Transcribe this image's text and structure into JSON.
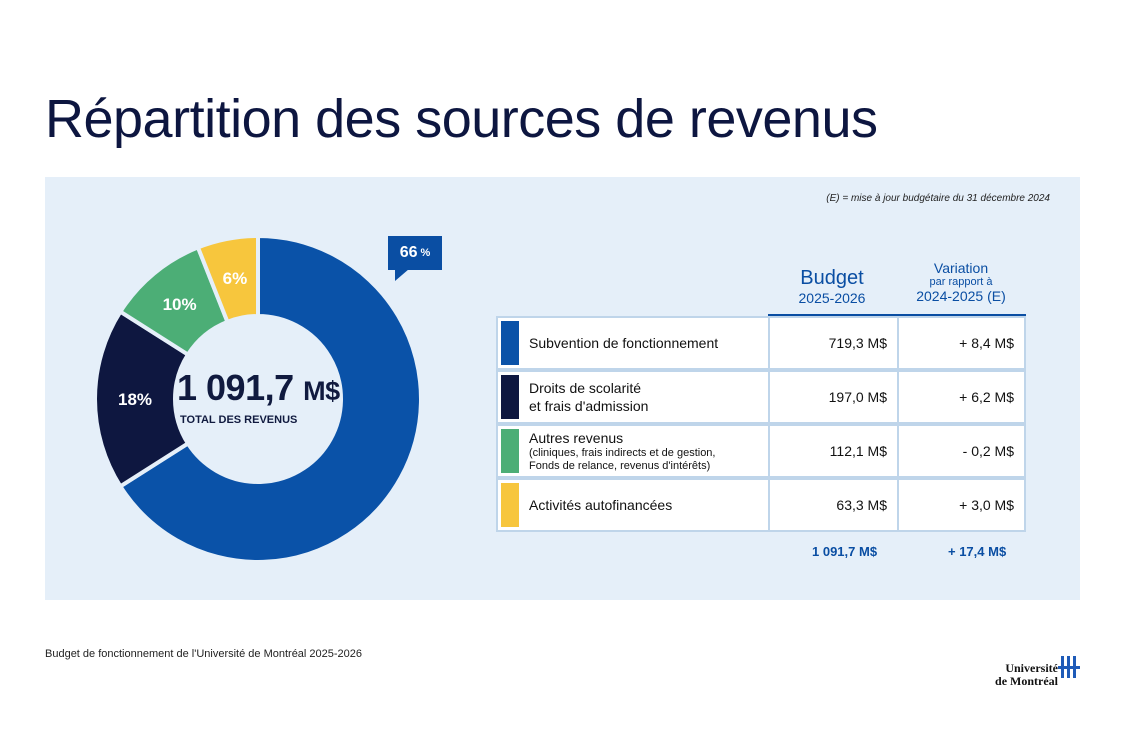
{
  "title": "Répartition des sources de revenus",
  "note": "(E) = mise à jour budgétaire du 31 décembre 2024",
  "colors": {
    "blue": "#0a52a8",
    "navy": "#0e1740",
    "green": "#4cae76",
    "yellow": "#f7c63d",
    "accent": "#0a4ea3",
    "panel": "#e5eff9"
  },
  "donut": {
    "total": "1 091,7",
    "total_unit": "M$",
    "total_label": "TOTAL DES REVENUS",
    "callout_value": "66",
    "callout_unit": "%"
  },
  "table": {
    "headers": {
      "budget_title": "Budget",
      "budget_year": "2025-2026",
      "variation_title": "Variation",
      "variation_line2": "par rapport à",
      "variation_year": "2024-2025 (E)"
    },
    "rows": [
      {
        "label": "Subvention de fonctionnement",
        "sublabel": "",
        "budget": "719,3 M$",
        "variation": "+ 8,4 M$",
        "color": "#0a52a8"
      },
      {
        "label": "Droits de scolarité",
        "sublabel": "",
        "label2": "et frais d'admission",
        "budget": "197,0 M$",
        "variation": "+ 6,2 M$",
        "color": "#0e1740"
      },
      {
        "label": "Autres revenus",
        "sublabel": "(cliniques, frais indirects et de gestion,",
        "sublabel2": "Fonds de relance, revenus d'intérêts)",
        "budget": "112,1 M$",
        "variation": "- 0,2 M$",
        "color": "#4cae76"
      },
      {
        "label": "Activités autofinancées",
        "sublabel": "",
        "budget": "63,3 M$",
        "variation": "+ 3,0 M$",
        "color": "#f7c63d"
      }
    ],
    "total_budget": "1 091,7 M$",
    "total_variation": "+ 17,4 M$"
  },
  "footer": "Budget de fonctionnement de l'Université de Montréal 2025-2026",
  "logo": {
    "line1": "Université",
    "line2": "de Montréal"
  },
  "chart_data": {
    "type": "pie",
    "categories": [
      "Subvention de fonctionnement",
      "Droits de scolarité et frais d'admission",
      "Autres revenus",
      "Activités autofinancées"
    ],
    "values": [
      66,
      18,
      10,
      6
    ],
    "labels": [
      "66 %",
      "18%",
      "10%",
      "6%"
    ],
    "donut": true
  }
}
